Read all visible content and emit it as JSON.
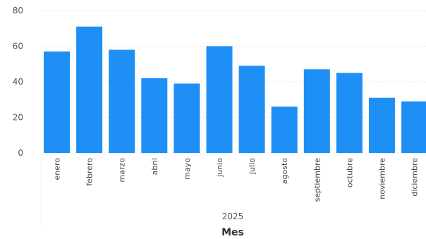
{
  "chart_data": {
    "type": "bar",
    "categories": [
      "enero",
      "febrero",
      "marzo",
      "abril",
      "mayo",
      "junio",
      "julio",
      "agosto",
      "septiembre",
      "octubre",
      "noviembre",
      "diciembre"
    ],
    "values": [
      57,
      71,
      58,
      42,
      39,
      60,
      49,
      26,
      47,
      45,
      31,
      29
    ],
    "ylim": [
      0,
      80
    ],
    "yticks": [
      "0",
      "20",
      "40",
      "60",
      "80"
    ],
    "group_label": "2025",
    "xlabel": "Mes",
    "ylabel": "",
    "grid": true,
    "bar_color": "#1E90F5",
    "grid_color": "#e6e6e6"
  }
}
